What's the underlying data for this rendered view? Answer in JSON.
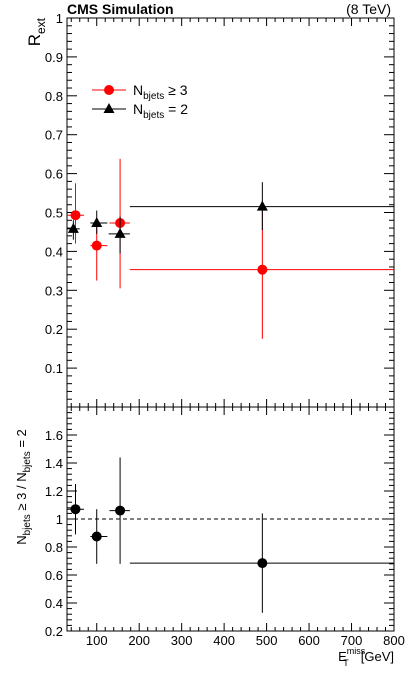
{
  "header": {
    "experiment_label": "CMS Simulation",
    "energy_label": "(8 TeV)"
  },
  "chart_data": [
    {
      "type": "scatter",
      "panel": "upper",
      "ylabel_main": "R",
      "ylabel_sub": "ext",
      "xlim": [
        30,
        800
      ],
      "ylim": [
        0,
        1.0
      ],
      "yticks": [
        0.1,
        0.2,
        0.3,
        0.4,
        0.5,
        0.6,
        0.7,
        0.8,
        0.9,
        1
      ],
      "grid": false,
      "legend_position": "top-left",
      "series": [
        {
          "name_main": "N",
          "name_sub": "bjets",
          "name_rel": "≥ 3",
          "color": "#ff0000",
          "marker": "circle",
          "points": [
            {
              "x": 50,
              "y": 0.493,
              "xerr": [
                30,
                70
              ],
              "yerr": [
                0.42,
                0.575
              ]
            },
            {
              "x": 100,
              "y": 0.415,
              "xerr": [
                85,
                125
              ],
              "yerr": [
                0.325,
                0.475
              ]
            },
            {
              "x": 155,
              "y": 0.473,
              "xerr": [
                130,
                178
              ],
              "yerr": [
                0.305,
                0.638
              ]
            },
            {
              "x": 490,
              "y": 0.353,
              "xerr": [
                178,
                800
              ],
              "yerr": [
                0.175,
                0.53
              ]
            }
          ]
        },
        {
          "name_main": "N",
          "name_sub": "bjets",
          "name_rel": "= 2",
          "color": "#000000",
          "marker": "triangle",
          "points": [
            {
              "x": 45,
              "y": 0.458,
              "xerr": [
                30,
                60
              ],
              "yerr": [
                0.43,
                0.48
              ]
            },
            {
              "x": 100,
              "y": 0.473,
              "xerr": [
                85,
                125
              ],
              "yerr": [
                0.445,
                0.505
              ]
            },
            {
              "x": 155,
              "y": 0.445,
              "xerr": [
                128,
                178
              ],
              "yerr": [
                0.395,
                0.49
              ]
            },
            {
              "x": 490,
              "y": 0.515,
              "xerr": [
                178,
                800
              ],
              "yerr": [
                0.455,
                0.578
              ]
            }
          ]
        }
      ]
    },
    {
      "type": "scatter",
      "panel": "ratio",
      "ylabel_parts": [
        "N",
        "bjets",
        "≥ 3 / N",
        "bjets",
        "= 2"
      ],
      "xlabel_main": "E",
      "xlabel_sub": "T",
      "xlabel_sup": "miss",
      "xlabel_unit": "[GeV]",
      "xlim": [
        30,
        800
      ],
      "ylim": [
        0.2,
        1.8
      ],
      "xticks": [
        100,
        200,
        300,
        400,
        500,
        600,
        700,
        800
      ],
      "yticks": [
        0.2,
        0.4,
        0.6,
        0.8,
        1,
        1.2,
        1.4,
        1.6
      ],
      "reference_line": 1,
      "grid": false,
      "series": [
        {
          "color": "#000000",
          "marker": "circle",
          "points": [
            {
              "x": 50,
              "y": 1.07,
              "xerr": [
                30,
                70
              ],
              "yerr": [
                0.89,
                1.25
              ]
            },
            {
              "x": 100,
              "y": 0.875,
              "xerr": [
                85,
                125
              ],
              "yerr": [
                0.68,
                1.07
              ]
            },
            {
              "x": 155,
              "y": 1.06,
              "xerr": [
                130,
                178
              ],
              "yerr": [
                0.68,
                1.44
              ]
            },
            {
              "x": 490,
              "y": 0.685,
              "xerr": [
                178,
                800
              ],
              "yerr": [
                0.33,
                1.04
              ]
            }
          ]
        }
      ]
    }
  ]
}
